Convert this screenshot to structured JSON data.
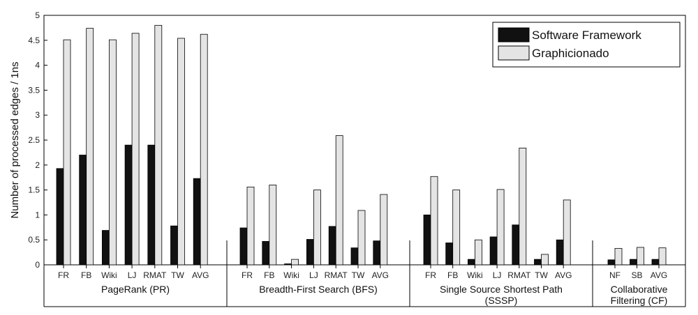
{
  "chart_data": {
    "type": "bar",
    "title": "",
    "ylabel": "Number of processed edges / 1ns",
    "xlabel": "",
    "ylim": [
      0,
      5
    ],
    "yticks": [
      0,
      0.5,
      1,
      1.5,
      2,
      2.5,
      3,
      3.5,
      4,
      4.5,
      5
    ],
    "ytick_labels": [
      "0",
      "0.5",
      "1",
      "1.5",
      "2",
      "2.5",
      "3",
      "3.5",
      "4",
      "4.5",
      "5"
    ],
    "grid": false,
    "legend": {
      "placement": "top-right",
      "entries": [
        {
          "name": "Software Framework",
          "color": "#111111"
        },
        {
          "name": "Graphicionado",
          "color": "#e4e4e4"
        }
      ]
    },
    "groups": [
      {
        "label_lines": [
          "PageRank (PR)"
        ],
        "categories": [
          "FR",
          "FB",
          "Wiki",
          "LJ",
          "RMAT",
          "TW",
          "AVG"
        ],
        "series": [
          {
            "name": "Software Framework",
            "values": [
              1.93,
              2.2,
              0.69,
              2.4,
              2.4,
              0.78,
              1.73
            ]
          },
          {
            "name": "Graphicionado",
            "values": [
              4.51,
              4.74,
              4.51,
              4.64,
              4.8,
              4.54,
              4.62
            ]
          }
        ]
      },
      {
        "label_lines": [
          "Breadth-First Search (BFS)"
        ],
        "categories": [
          "FR",
          "FB",
          "Wiki",
          "LJ",
          "RMAT",
          "TW",
          "AVG"
        ],
        "series": [
          {
            "name": "Software Framework",
            "values": [
              0.74,
              0.47,
              0.02,
              0.51,
              0.77,
              0.34,
              0.48
            ]
          },
          {
            "name": "Graphicionado",
            "values": [
              1.56,
              1.6,
              0.11,
              1.5,
              2.59,
              1.09,
              1.41
            ]
          }
        ]
      },
      {
        "label_lines": [
          "Single Source Shortest Path",
          "(SSSP)"
        ],
        "categories": [
          "FR",
          "FB",
          "Wiki",
          "LJ",
          "RMAT",
          "TW",
          "AVG"
        ],
        "series": [
          {
            "name": "Software Framework",
            "values": [
              1.0,
              0.44,
              0.11,
              0.56,
              0.8,
              0.11,
              0.5
            ]
          },
          {
            "name": "Graphicionado",
            "values": [
              1.77,
              1.5,
              0.5,
              1.51,
              2.34,
              0.21,
              1.3
            ]
          }
        ]
      },
      {
        "label_lines": [
          "Collaborative",
          "Filtering (CF)"
        ],
        "categories": [
          "NF",
          "SB",
          "AVG"
        ],
        "series": [
          {
            "name": "Software Framework",
            "values": [
              0.1,
              0.11,
              0.11
            ]
          },
          {
            "name": "Graphicionado",
            "values": [
              0.33,
              0.35,
              0.34
            ]
          }
        ]
      }
    ]
  }
}
